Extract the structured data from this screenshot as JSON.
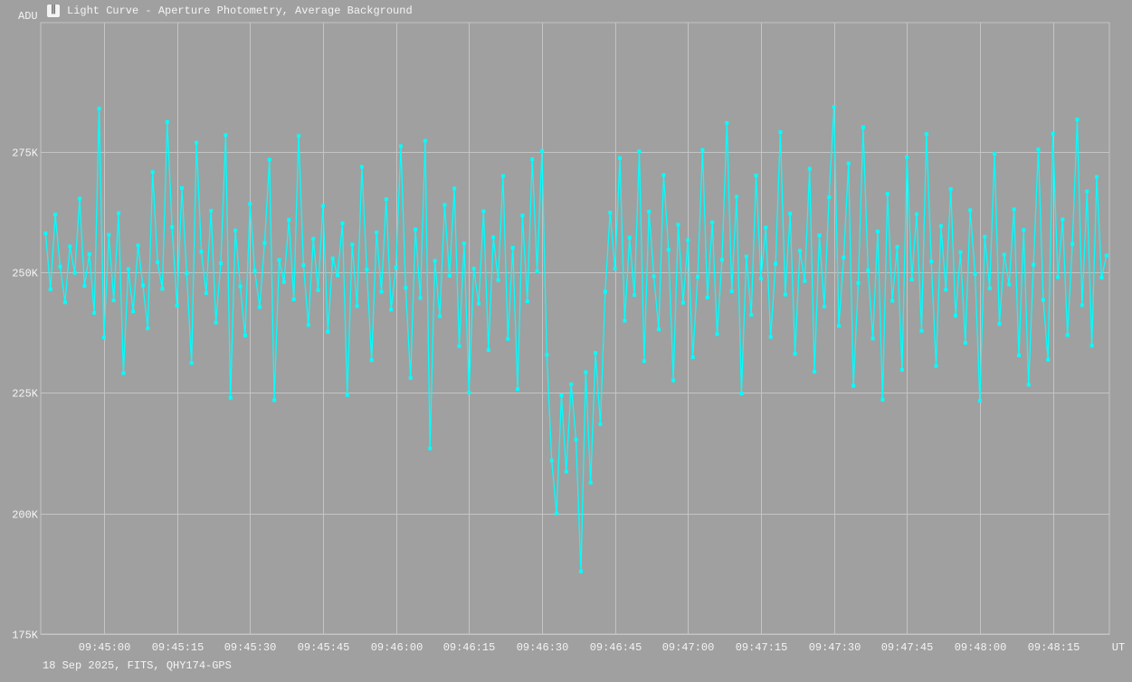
{
  "window": {
    "title": "Light Curve - Aperture Photometry, Average Background",
    "icon": "light-curve-app-icon"
  },
  "footer": "18 Sep 2025, FITS, QHY174-GPS",
  "colors": {
    "background": "#a0a0a0",
    "grid": "#c4c4c4",
    "series": "#00ffff",
    "text": "#f4f4f4"
  },
  "chart_data": {
    "type": "line",
    "title": "Light Curve - Aperture Photometry, Average Background",
    "ylabel": "ADU",
    "xlabel": "UT",
    "grid": true,
    "markers": true,
    "ylim": [
      175000,
      301800
    ],
    "xlim": [
      "09:44:47",
      "09:48:26.6"
    ],
    "yticks": [
      175000,
      200000,
      225000,
      250000,
      275000
    ],
    "ytick_labels": [
      "175K",
      "200K",
      "225K",
      "250K",
      "275K"
    ],
    "xtick_labels": [
      "09:45:00",
      "09:45:15",
      "09:45:30",
      "09:45:45",
      "09:46:00",
      "09:46:15",
      "09:46:30",
      "09:46:45",
      "09:47:00",
      "09:47:15",
      "09:47:30",
      "09:47:45",
      "09:48:00",
      "09:48:15"
    ],
    "x": [
      "09:44:48",
      "09:44:49",
      "09:44:50",
      "09:44:51",
      "09:44:52",
      "09:44:53",
      "09:44:54",
      "09:44:55",
      "09:44:56",
      "09:44:57",
      "09:44:58",
      "09:44:59",
      "09:45:00",
      "09:45:01",
      "09:45:02",
      "09:45:03",
      "09:45:04",
      "09:45:05",
      "09:45:06",
      "09:45:07",
      "09:45:08",
      "09:45:09",
      "09:45:10",
      "09:45:11",
      "09:45:12",
      "09:45:13",
      "09:45:14",
      "09:45:15",
      "09:45:16",
      "09:45:17",
      "09:45:18",
      "09:45:19",
      "09:45:20",
      "09:45:21",
      "09:45:22",
      "09:45:23",
      "09:45:24",
      "09:45:25",
      "09:45:26",
      "09:45:27",
      "09:45:28",
      "09:45:29",
      "09:45:30",
      "09:45:31",
      "09:45:32",
      "09:45:33",
      "09:45:34",
      "09:45:35",
      "09:45:36",
      "09:45:37",
      "09:45:38",
      "09:45:39",
      "09:45:40",
      "09:45:41",
      "09:45:42",
      "09:45:43",
      "09:45:44",
      "09:45:45",
      "09:45:46",
      "09:45:47",
      "09:45:48",
      "09:45:49",
      "09:45:50",
      "09:45:51",
      "09:45:52",
      "09:45:53",
      "09:45:54",
      "09:45:55",
      "09:45:56",
      "09:45:57",
      "09:45:58",
      "09:45:59",
      "09:46:00",
      "09:46:01",
      "09:46:02",
      "09:46:03",
      "09:46:04",
      "09:46:05",
      "09:46:06",
      "09:46:07",
      "09:46:08",
      "09:46:09",
      "09:46:10",
      "09:46:11",
      "09:46:12",
      "09:46:13",
      "09:46:14",
      "09:46:15",
      "09:46:16",
      "09:46:17",
      "09:46:18",
      "09:46:19",
      "09:46:20",
      "09:46:21",
      "09:46:22",
      "09:46:23",
      "09:46:24",
      "09:46:25",
      "09:46:26",
      "09:46:27",
      "09:46:28",
      "09:46:29",
      "09:46:30",
      "09:46:31",
      "09:46:32",
      "09:46:33",
      "09:46:34",
      "09:46:35",
      "09:46:36",
      "09:46:37",
      "09:46:38",
      "09:46:39",
      "09:46:40",
      "09:46:41",
      "09:46:42",
      "09:46:43",
      "09:46:44",
      "09:46:45",
      "09:46:46",
      "09:46:47",
      "09:46:48",
      "09:46:49",
      "09:46:50",
      "09:46:51",
      "09:46:52",
      "09:46:53",
      "09:46:54",
      "09:46:55",
      "09:46:56",
      "09:46:57",
      "09:46:58",
      "09:46:59",
      "09:47:00",
      "09:47:01",
      "09:47:02",
      "09:47:03",
      "09:47:04",
      "09:47:05",
      "09:47:06",
      "09:47:07",
      "09:47:08",
      "09:47:09",
      "09:47:10",
      "09:47:11",
      "09:47:12",
      "09:47:13",
      "09:47:14",
      "09:47:15",
      "09:47:16",
      "09:47:17",
      "09:47:18",
      "09:47:19",
      "09:47:20",
      "09:47:21",
      "09:47:22",
      "09:47:23",
      "09:47:24",
      "09:47:25",
      "09:47:26",
      "09:47:27",
      "09:47:28",
      "09:47:29",
      "09:47:30",
      "09:47:31",
      "09:47:32",
      "09:47:33",
      "09:47:34",
      "09:47:35",
      "09:47:36",
      "09:47:37",
      "09:47:38",
      "09:47:39",
      "09:47:40",
      "09:47:41",
      "09:47:42",
      "09:47:43",
      "09:47:44",
      "09:47:45",
      "09:47:46",
      "09:47:47",
      "09:47:48",
      "09:47:49",
      "09:47:50",
      "09:47:51",
      "09:47:52",
      "09:47:53",
      "09:47:54",
      "09:47:55",
      "09:47:56",
      "09:47:57",
      "09:47:58",
      "09:47:59",
      "09:48:00",
      "09:48:01",
      "09:48:02",
      "09:48:03",
      "09:48:04",
      "09:48:05",
      "09:48:06",
      "09:48:07",
      "09:48:08",
      "09:48:09",
      "09:48:10",
      "09:48:11",
      "09:48:12",
      "09:48:13",
      "09:48:14",
      "09:48:15",
      "09:48:16",
      "09:48:17",
      "09:48:18",
      "09:48:19",
      "09:48:20",
      "09:48:21",
      "09:48:22",
      "09:48:23",
      "09:48:24",
      "09:48:25",
      "09:48:26"
    ],
    "y": [
      258100,
      246500,
      262000,
      251200,
      243800,
      255400,
      249900,
      265300,
      247200,
      253800,
      241600,
      284000,
      236500,
      257800,
      244200,
      262300,
      229100,
      250700,
      241900,
      255600,
      247300,
      238400,
      270800,
      252100,
      246600,
      281200,
      259400,
      243100,
      267500,
      249800,
      231200,
      276900,
      254300,
      245700,
      262800,
      239600,
      251900,
      278500,
      224000,
      258700,
      247100,
      236900,
      264200,
      250300,
      242800,
      256100,
      273400,
      223500,
      252600,
      248000,
      260900,
      244400,
      278300,
      251500,
      239100,
      257000,
      246300,
      263800,
      237700,
      252900,
      249400,
      260200,
      224600,
      255800,
      243000,
      271900,
      250600,
      231800,
      258300,
      246000,
      265200,
      242300,
      251000,
      276200,
      246800,
      228100,
      258900,
      244700,
      277300,
      213500,
      252400,
      240900,
      264000,
      249300,
      267400,
      234700,
      256000,
      225100,
      250800,
      243500,
      262700,
      233900,
      257300,
      248400,
      270000,
      236200,
      255100,
      225800,
      261800,
      244000,
      273500,
      250200,
      275200,
      232900,
      211000,
      200000,
      224500,
      208700,
      226800,
      215300,
      188000,
      229300,
      206400,
      233300,
      218500,
      246000,
      262400,
      250800,
      273700,
      240000,
      257200,
      245300,
      275100,
      231600,
      262600,
      249200,
      238200,
      270200,
      254700,
      227600,
      259900,
      243700,
      256700,
      232400,
      249100,
      275400,
      244800,
      260400,
      237200,
      252600,
      281000,
      246100,
      265700,
      224900,
      253300,
      241200,
      270100,
      248700,
      259300,
      236600,
      251800,
      279100,
      245400,
      262200,
      233100,
      254500,
      248200,
      271500,
      229400,
      257700,
      242900,
      265600,
      284300,
      238900,
      253100,
      272600,
      226500,
      247800,
      280100,
      250400,
      236300,
      258500,
      223600,
      266300,
      244100,
      255300,
      229800,
      273900,
      248500,
      262100,
      237900,
      278700,
      252300,
      230600,
      259600,
      246400,
      267300,
      241000,
      254200,
      235400,
      262900,
      249700,
      223400,
      257400,
      246700,
      274600,
      239300,
      253700,
      247500,
      263100,
      232800,
      258800,
      226700,
      251600,
      275500,
      244300,
      231900,
      278800,
      249000,
      261000,
      237000,
      255900,
      281700,
      243200,
      266800,
      234800,
      269800,
      248900,
      253500
    ]
  }
}
